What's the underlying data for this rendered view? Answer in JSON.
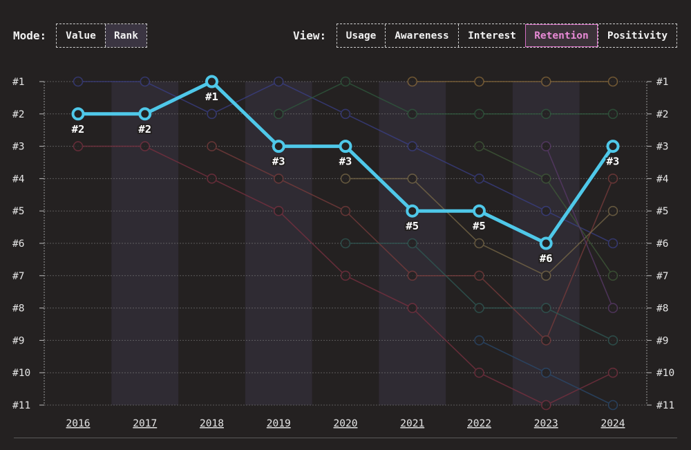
{
  "mode": {
    "label": "Mode:",
    "options": [
      "Value",
      "Rank"
    ],
    "selected": "Rank"
  },
  "view": {
    "label": "View:",
    "options": [
      "Usage",
      "Awareness",
      "Interest",
      "Retention",
      "Positivity"
    ],
    "selected": "Retention"
  },
  "colors": {
    "background": "#242121",
    "highlight": "#4fc8e9",
    "active_view_text": "#e88ad6",
    "band": "#2f2b33"
  },
  "chart_data": {
    "type": "line",
    "x": [
      "2016",
      "2017",
      "2018",
      "2019",
      "2020",
      "2021",
      "2022",
      "2023",
      "2024"
    ],
    "y_axis": {
      "reversed": true,
      "range": [
        1,
        11
      ],
      "tick_labels": [
        "#1",
        "#2",
        "#3",
        "#4",
        "#5",
        "#6",
        "#7",
        "#8",
        "#9",
        "#10",
        "#11"
      ],
      "both_sides": true
    },
    "grid": true,
    "highlight_series": {
      "color": "#4fc8e9",
      "values": [
        2,
        2,
        1,
        3,
        3,
        5,
        5,
        6,
        3
      ],
      "point_labels": [
        "#2",
        "#2",
        "#1",
        "#3",
        "#3",
        "#5",
        "#5",
        "#6",
        "#3"
      ]
    },
    "series": [
      {
        "color": "#3a3f86",
        "values": [
          1,
          1,
          2,
          1,
          2,
          3,
          4,
          5,
          6
        ]
      },
      {
        "color": "#7a3040",
        "values": [
          3,
          3,
          4,
          5,
          7,
          8,
          10,
          11,
          10
        ]
      },
      {
        "color": "#7a3c3c",
        "values": [
          null,
          null,
          3,
          4,
          5,
          7,
          7,
          9,
          4
        ]
      },
      {
        "color": "#2f5a3e",
        "values": [
          null,
          null,
          null,
          2,
          1,
          2,
          2,
          2,
          2
        ]
      },
      {
        "color": "#7a6a48",
        "values": [
          null,
          null,
          null,
          null,
          4,
          4,
          6,
          7,
          5
        ]
      },
      {
        "color": "#2f5a55",
        "values": [
          null,
          null,
          null,
          null,
          6,
          6,
          8,
          8,
          9
        ]
      },
      {
        "color": "#8a6a3a",
        "values": [
          null,
          null,
          null,
          null,
          null,
          1,
          1,
          1,
          1
        ]
      },
      {
        "color": "#2a4a6e",
        "values": [
          null,
          null,
          null,
          null,
          null,
          null,
          9,
          10,
          11
        ]
      },
      {
        "color": "#3f5a38",
        "values": [
          null,
          null,
          null,
          null,
          null,
          null,
          3,
          4,
          7
        ]
      },
      {
        "color": "#5a3a6a",
        "values": [
          null,
          null,
          null,
          null,
          null,
          null,
          null,
          3,
          8
        ]
      }
    ]
  }
}
